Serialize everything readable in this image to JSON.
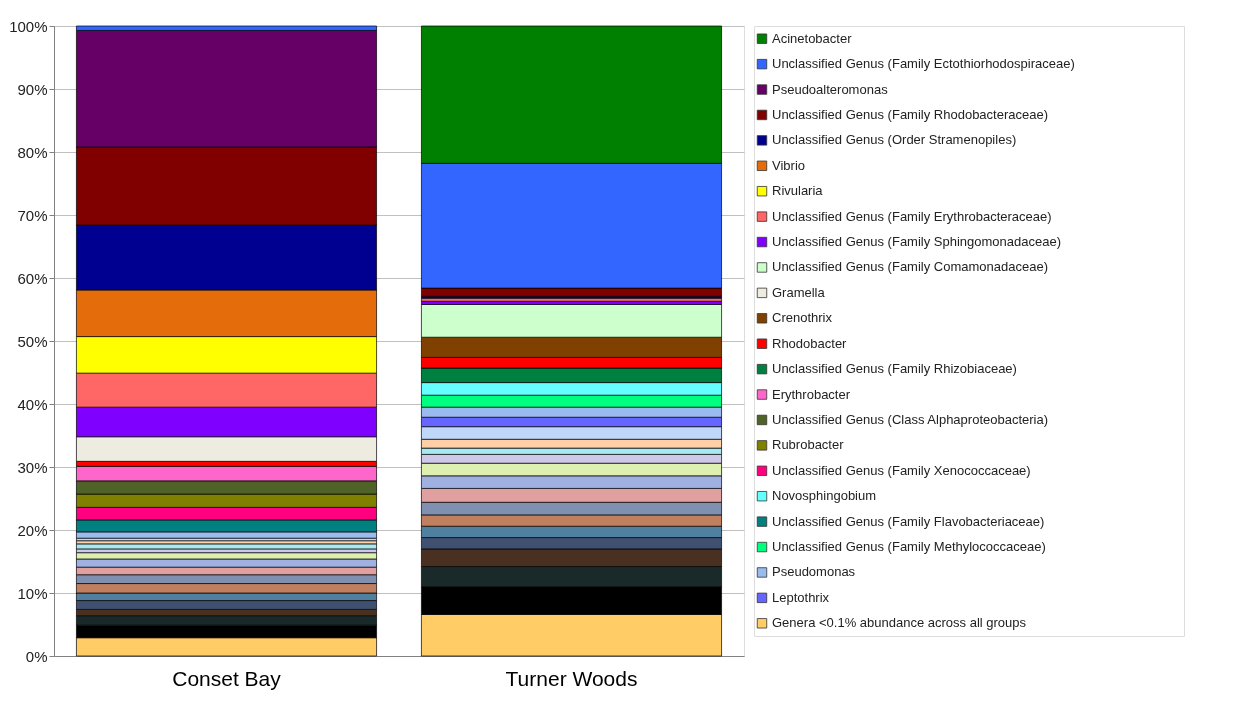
{
  "chart_data": {
    "type": "bar",
    "stacked": true,
    "categories": [
      "Conset Bay",
      "Turner Woods"
    ],
    "ylim": [
      0,
      100
    ],
    "yticks": [
      {
        "value": 0,
        "label": "0%"
      },
      {
        "value": 10,
        "label": "10%"
      },
      {
        "value": 20,
        "label": "20%"
      },
      {
        "value": 30,
        "label": "30%"
      },
      {
        "value": 40,
        "label": "40%"
      },
      {
        "value": 50,
        "label": "50%"
      },
      {
        "value": 60,
        "label": "60%"
      },
      {
        "value": 70,
        "label": "70%"
      },
      {
        "value": 80,
        "label": "80%"
      },
      {
        "value": 90,
        "label": "90%"
      },
      {
        "value": 100,
        "label": "100%"
      }
    ],
    "grid": "y",
    "legend": "right",
    "series": [
      {
        "name": "Genera <0.1% abundance across all groups",
        "color": "#ffcc66",
        "values": [
          2.9,
          6.6
        ]
      },
      {
        "color": "#000000",
        "values": [
          2.0,
          4.4
        ]
      },
      {
        "color": "#1a2a2a",
        "values": [
          1.5,
          3.2
        ]
      },
      {
        "color": "#4a3020",
        "values": [
          1.0,
          2.8
        ]
      },
      {
        "color": "#405070",
        "values": [
          1.4,
          1.8
        ]
      },
      {
        "color": "#5080a0",
        "values": [
          1.2,
          1.8
        ]
      },
      {
        "color": "#c08060",
        "values": [
          1.5,
          1.8
        ]
      },
      {
        "color": "#8090b0",
        "values": [
          1.4,
          2.0
        ]
      },
      {
        "color": "#e0a0a0",
        "values": [
          1.2,
          2.2
        ]
      },
      {
        "color": "#a0b0e0",
        "values": [
          1.3,
          2.0
        ]
      },
      {
        "color": "#ddf0b0",
        "values": [
          1.0,
          2.0
        ]
      },
      {
        "color": "#d0c8e8",
        "values": [
          0.6,
          1.4
        ]
      },
      {
        "color": "#a8e8f0",
        "values": [
          0.8,
          1.0
        ]
      },
      {
        "color": "#ffd0a8",
        "values": [
          0.5,
          1.4
        ]
      },
      {
        "color": "#c0d8f8",
        "values": [
          0.4,
          2.0
        ]
      },
      {
        "name": "Leptothrix",
        "color": "#6666ff",
        "values": [
          0,
          1.5
        ]
      },
      {
        "name": "Pseudomonas",
        "color": "#99bbee",
        "values": [
          1.0,
          1.6
        ]
      },
      {
        "name": "Unclassified Genus (Family Methylococcaceae)",
        "color": "#00ff80",
        "values": [
          0,
          1.9
        ]
      },
      {
        "name": "Unclassified Genus (Family Flavobacteriaceae)",
        "color": "#008080",
        "values": [
          1.9,
          0
        ]
      },
      {
        "name": "Novosphingobium",
        "color": "#66ffff",
        "values": [
          0,
          2.0
        ]
      },
      {
        "name": "Unclassified Genus (Family Xenococcaceae)",
        "color": "#ff0080",
        "values": [
          2.0,
          0
        ]
      },
      {
        "name": "Rubrobacter",
        "color": "#808000",
        "values": [
          2.1,
          0
        ]
      },
      {
        "name": "Unclassified Genus (Class Alphaproteobacteria)",
        "color": "#4f6228",
        "values": [
          2.1,
          0
        ]
      },
      {
        "name": "Erythrobacter",
        "color": "#ff66cc",
        "values": [
          2.3,
          0
        ]
      },
      {
        "name": "Unclassified Genus (Family Rhizobiaceae)",
        "color": "#008040",
        "values": [
          0,
          2.3
        ]
      },
      {
        "name": "Rhodobacter",
        "color": "#ff0000",
        "values": [
          0.8,
          1.7
        ]
      },
      {
        "name": "Crenothrix",
        "color": "#804000",
        "values": [
          0,
          3.2
        ]
      },
      {
        "name": "Gramella",
        "color": "#eeebe0",
        "values": [
          3.9,
          0
        ]
      },
      {
        "name": "Unclassified Genus (Family Comamonadaceae)",
        "color": "#ccffcc",
        "values": [
          0,
          5.2
        ]
      },
      {
        "name": "Unclassified Genus (Family Sphingomonadaceae)",
        "color": "#8000ff",
        "values": [
          4.7,
          0.5
        ]
      },
      {
        "name": "Unclassified Genus (Family Erythrobacteraceae)",
        "color": "#ff6666",
        "values": [
          5.4,
          0.5
        ]
      },
      {
        "name": "Rivularia",
        "color": "#ffff00",
        "values": [
          5.8,
          0
        ]
      },
      {
        "name": "Vibrio",
        "color": "#e46c0a",
        "values": [
          7.4,
          0
        ]
      },
      {
        "name": "Unclassified Genus (Order Stramenopiles)",
        "color": "#000090",
        "values": [
          10.3,
          0.3
        ]
      },
      {
        "name": "Unclassified Genus (Family Rhodobacteraceae)",
        "color": "#800000",
        "values": [
          12.4,
          1.3
        ]
      },
      {
        "name": "Pseudoalteromonas",
        "color": "#660066",
        "values": [
          18.5,
          0
        ]
      },
      {
        "name": "Unclassified Genus (Family Ectothiorhodospiraceae)",
        "color": "#3366ff",
        "values": [
          0.7,
          19.8
        ]
      },
      {
        "name": "Acinetobacter",
        "color": "#008000",
        "values": [
          0,
          21.8
        ]
      }
    ]
  }
}
